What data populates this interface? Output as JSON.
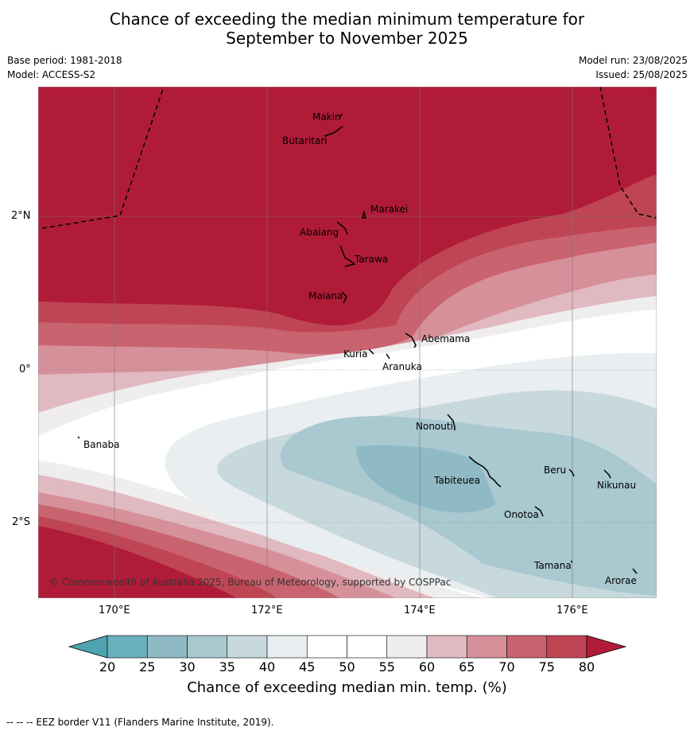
{
  "title_line1": "Chance of exceeding the median minimum temperature for",
  "title_line2": "September to November 2025",
  "base_period": "Base period: 1981-2018",
  "model": "Model: ACCESS-S2",
  "model_run": "Model run: 23/08/2025",
  "issued": "Issued: 25/08/2025",
  "axes": {
    "lon_ticks": [
      "170°E",
      "172°E",
      "174°E",
      "176°E"
    ],
    "lat_ticks": [
      "2°N",
      "0°",
      "2°S"
    ]
  },
  "places": [
    "Makin",
    "Butaritari",
    "Marakei",
    "Abaiang",
    "Tarawa",
    "Maiana",
    "Abemama",
    "Kuria",
    "Aranuka",
    "Banaba",
    "Nonouti",
    "Tabiteuea",
    "Beru",
    "Nikunau",
    "Onotoa",
    "Tamana",
    "Arorae"
  ],
  "copyright": "© Commonwealth of Australia 2025, Bureau of Meteorology, supported by COSPPac",
  "colorbar": {
    "ticks": [
      "20",
      "25",
      "30",
      "35",
      "40",
      "45",
      "50",
      "55",
      "60",
      "65",
      "70",
      "75",
      "80"
    ],
    "colors": [
      "#6ab0bd",
      "#8fb9c5",
      "#a9c8cf",
      "#c8d9de",
      "#e9eef0",
      "#ffffff",
      "#ffffff",
      "#efedee",
      "#e1b9c0",
      "#d6909a",
      "#c9636f",
      "#bf4554"
    ],
    "low_extend_color": "#4ea3b1",
    "high_extend_color": "#b01c38",
    "title": "Chance of exceeding median min. temp. (%)"
  },
  "footer": "--  --  -- EEZ border V11 (Flanders Marine Institute, 2019)."
}
